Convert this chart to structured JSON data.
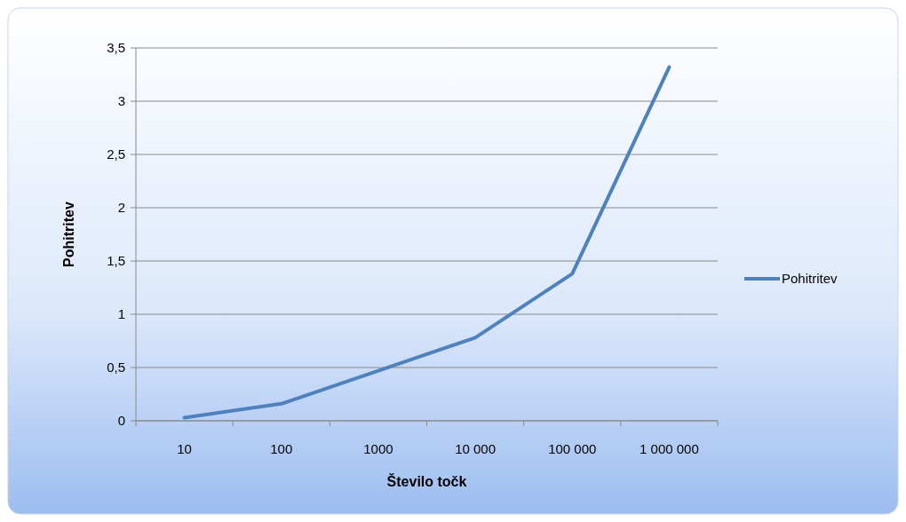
{
  "chart_data": {
    "type": "line",
    "xlabel": "Število točk",
    "ylabel": "Pohitritev",
    "categories": [
      "10",
      "100",
      "1000",
      "10 000",
      "100 000",
      "1 000 000"
    ],
    "series": [
      {
        "name": "Pohitritev",
        "color": "#4f81bd",
        "values": [
          0.03,
          0.16,
          0.47,
          0.78,
          1.38,
          3.32
        ]
      }
    ],
    "ylim": [
      0,
      3.5
    ],
    "yticks": [
      {
        "value": 0,
        "label": "0"
      },
      {
        "value": 0.5,
        "label": "0,5"
      },
      {
        "value": 1,
        "label": "1"
      },
      {
        "value": 1.5,
        "label": "1,5"
      },
      {
        "value": 2,
        "label": "2"
      },
      {
        "value": 2.5,
        "label": "2,5"
      },
      {
        "value": 3,
        "label": "3"
      },
      {
        "value": 3.5,
        "label": "3,5"
      }
    ],
    "grid": "y",
    "legend": "right",
    "marker": "none",
    "line_style": "solid"
  }
}
